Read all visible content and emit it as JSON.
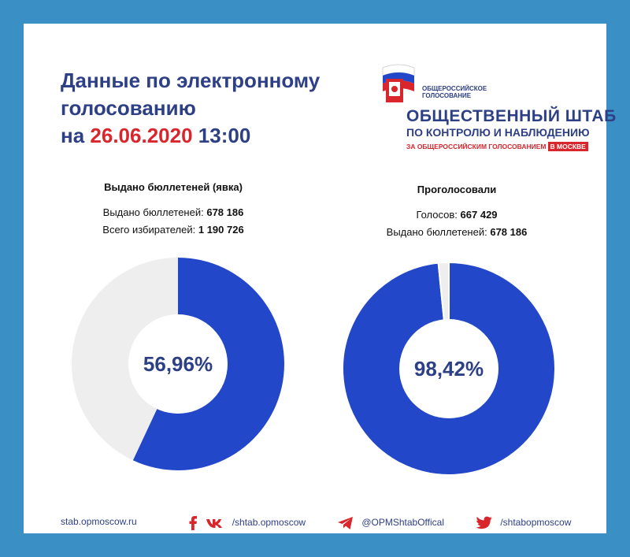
{
  "title": {
    "line1": "Данные по электронному",
    "line2": "голосованию",
    "prefix": "на",
    "date": "26.06.2020",
    "time": "13:00"
  },
  "logo": {
    "small": "Общероссийское голосование",
    "line1": "ОБЩЕСТВЕННЫЙ ШТАБ",
    "line2": "ПО КОНТРОЛЮ И НАБЛЮДЕНИЮ",
    "line3": "ЗА ОБЩЕРОССИЙСКИМ ГОЛОСОВАНИЕМ",
    "tag": "В МОСКВЕ"
  },
  "colors": {
    "background": "#3a8fc4",
    "primary": "#2347c9",
    "remainder": "#eeeeee",
    "text_dark_blue": "#2d3f85",
    "accent_red": "#d9262c"
  },
  "panels": {
    "left": {
      "title": "Выдано бюллетеней (явка)",
      "row1_label": "Выдано бюллетеней:",
      "row1_value": "678 186",
      "row2_label": "Всего избирателей:",
      "row2_value": "1 190 726"
    },
    "right": {
      "title": "Проголосовали",
      "row1_label": "Голосов:",
      "row1_value": "667 429",
      "row2_label": "Выдано бюллетеней:",
      "row2_value": "678 186"
    }
  },
  "chart_data": [
    {
      "type": "pie",
      "donut": true,
      "center_label": "56,96%",
      "values": [
        56.96,
        43.04
      ],
      "colors": [
        "#2347c9",
        "#eeeeee"
      ]
    },
    {
      "type": "pie",
      "donut": true,
      "center_label": "98,42%",
      "values": [
        98.42,
        1.58
      ],
      "colors": [
        "#2347c9",
        "#eeeeee"
      ]
    }
  ],
  "footer": {
    "site": "stab.opmoscow.ru",
    "social1": "/shtab.opmoscow",
    "social2": "@OPMShtabOffical",
    "social3": "/shtabopmoscow",
    "icon1": "facebook-icon",
    "icon2": "vk-icon",
    "icon3": "telegram-icon",
    "icon4": "twitter-icon"
  }
}
